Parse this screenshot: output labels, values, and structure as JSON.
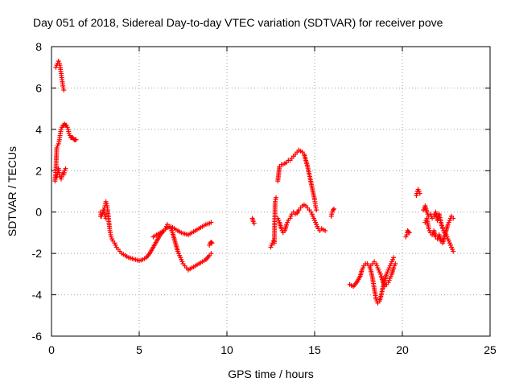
{
  "chart_data": {
    "type": "scatter",
    "title": "Day 051 of 2018, Sidereal Day-to-day VTEC variation (SDTVAR) for receiver pove",
    "xlabel": "GPS time / hours",
    "ylabel": "SDTVAR / TECUs",
    "xlim": [
      0,
      25
    ],
    "ylim": [
      -6,
      8
    ],
    "xticks": [
      0,
      5,
      10,
      15,
      20,
      25
    ],
    "yticks": [
      -6,
      -4,
      -2,
      0,
      2,
      4,
      6,
      8
    ],
    "grid": true,
    "marker": "+",
    "series_color": "#ff0000",
    "series": [
      {
        "name": "seg1",
        "x": [
          0.25,
          0.3,
          0.35,
          0.4,
          0.45,
          0.5,
          0.55,
          0.6,
          0.65,
          0.7
        ],
        "y": [
          7.0,
          7.1,
          7.2,
          7.3,
          7.2,
          7.0,
          6.7,
          6.4,
          6.1,
          5.9
        ]
      },
      {
        "name": "seg2",
        "x": [
          0.2,
          0.25,
          0.3,
          0.35,
          0.4,
          0.45,
          0.5,
          0.55,
          0.6,
          0.65,
          0.7,
          0.75,
          0.8,
          0.85,
          0.9,
          0.95,
          1.0,
          1.05,
          1.1,
          1.15,
          1.2,
          1.25,
          1.3,
          1.35,
          1.4
        ],
        "y": [
          1.5,
          2.0,
          3.1,
          3.2,
          3.3,
          3.5,
          3.8,
          4.0,
          4.1,
          4.2,
          4.2,
          4.25,
          4.2,
          4.2,
          4.1,
          4.0,
          3.8,
          3.7,
          3.6,
          3.6,
          3.6,
          3.55,
          3.5,
          3.5,
          3.5
        ]
      },
      {
        "name": "seg3",
        "x": [
          0.3,
          0.35,
          0.4,
          0.45,
          0.5,
          0.55,
          0.6,
          0.65,
          0.7,
          0.75,
          0.8
        ],
        "y": [
          1.7,
          1.9,
          2.1,
          1.8,
          1.7,
          1.6,
          1.8,
          1.9,
          1.8,
          2.0,
          2.1
        ]
      },
      {
        "name": "seg4",
        "x": [
          2.8,
          2.9,
          3.0,
          3.05,
          3.1,
          3.15,
          3.2,
          3.25,
          3.3,
          3.35,
          3.4,
          3.5,
          3.6,
          3.7,
          3.8,
          3.9,
          4.0,
          4.2,
          4.4,
          4.6,
          4.8,
          5.0,
          5.2,
          5.4,
          5.6,
          5.8,
          6.0,
          6.2,
          6.4,
          6.6,
          6.8,
          7.0,
          7.2,
          7.4,
          7.6,
          7.8,
          8.0,
          8.2,
          8.4,
          8.6,
          8.8,
          9.0,
          9.1
        ],
        "y": [
          -0.2,
          -0.1,
          0.1,
          0.3,
          0.5,
          0.4,
          0.1,
          -0.3,
          -0.7,
          -1.0,
          -1.2,
          -1.4,
          -1.5,
          -1.7,
          -1.8,
          -1.9,
          -2.0,
          -2.1,
          -2.2,
          -2.25,
          -2.3,
          -2.35,
          -2.3,
          -2.2,
          -2.0,
          -1.7,
          -1.4,
          -1.1,
          -0.9,
          -0.75,
          -0.7,
          -0.8,
          -0.9,
          -1.0,
          -1.05,
          -1.1,
          -1.0,
          -0.9,
          -0.8,
          -0.7,
          -0.6,
          -0.55,
          -0.5
        ]
      },
      {
        "name": "seg5",
        "x": [
          2.8,
          2.85,
          2.9,
          2.95,
          3.0,
          3.05,
          3.1
        ],
        "y": [
          0.0,
          -0.2,
          -0.1,
          0.1,
          0.0,
          -0.2,
          -0.3
        ]
      },
      {
        "name": "seg6",
        "x": [
          5.8,
          6.0,
          6.2,
          6.4,
          6.5,
          6.6,
          6.7,
          6.8,
          6.9,
          7.0,
          7.1,
          7.2,
          7.3,
          7.4,
          7.5,
          7.6,
          7.7,
          7.8,
          7.9,
          8.0,
          8.2,
          8.4,
          8.6,
          8.8,
          9.0,
          9.1
        ],
        "y": [
          -1.2,
          -1.1,
          -1.0,
          -0.9,
          -0.8,
          -0.6,
          -0.7,
          -0.8,
          -1.0,
          -1.3,
          -1.6,
          -1.9,
          -2.1,
          -2.3,
          -2.5,
          -2.6,
          -2.7,
          -2.8,
          -2.75,
          -2.7,
          -2.6,
          -2.5,
          -2.4,
          -2.3,
          -2.1,
          -2.0
        ]
      },
      {
        "name": "seg7",
        "x": [
          9.0,
          9.05,
          9.1,
          9.15
        ],
        "y": [
          -1.6,
          -1.5,
          -1.45,
          -1.5
        ]
      },
      {
        "name": "seg8",
        "x": [
          11.45,
          11.5,
          11.55
        ],
        "y": [
          -0.3,
          -0.45,
          -0.55
        ]
      },
      {
        "name": "seg9",
        "x": [
          12.5,
          12.55,
          12.6,
          12.65,
          12.7,
          12.75,
          12.8
        ],
        "y": [
          -1.7,
          -1.6,
          -1.5,
          -1.4,
          -1.5,
          0.5,
          0.7
        ]
      },
      {
        "name": "seg10",
        "x": [
          12.9,
          13.0,
          13.1,
          13.2,
          13.3,
          13.4,
          13.5,
          13.6,
          13.7,
          13.8,
          13.9,
          14.0,
          14.1,
          14.2,
          14.3,
          14.4,
          14.5,
          14.6,
          14.7,
          14.8,
          14.9,
          15.0,
          15.05,
          15.1
        ],
        "y": [
          1.5,
          2.2,
          2.3,
          2.3,
          2.35,
          2.4,
          2.5,
          2.5,
          2.6,
          2.7,
          2.8,
          2.9,
          3.0,
          2.95,
          2.9,
          2.8,
          2.5,
          2.2,
          1.8,
          1.4,
          1.0,
          0.6,
          0.3,
          0.1
        ]
      },
      {
        "name": "seg11",
        "x": [
          12.9,
          13.0,
          13.1,
          13.2,
          13.3,
          13.4,
          13.5,
          13.6,
          13.7,
          13.8,
          13.9,
          14.0,
          14.1,
          14.2,
          14.3,
          14.4,
          14.5,
          14.6,
          14.7,
          14.8,
          14.9,
          15.0,
          15.1,
          15.2,
          15.3,
          15.4,
          15.5,
          15.6
        ],
        "y": [
          -0.3,
          -0.5,
          -0.8,
          -1.0,
          -0.9,
          -0.6,
          -0.4,
          -0.3,
          -0.1,
          0.0,
          -0.1,
          -0.05,
          0.1,
          0.2,
          0.3,
          0.35,
          0.3,
          0.2,
          0.1,
          0.0,
          -0.2,
          -0.4,
          -0.6,
          -0.8,
          -0.9,
          -0.8,
          -0.85,
          -0.9
        ]
      },
      {
        "name": "seg12",
        "x": [
          15.95,
          16.0,
          16.05,
          16.1
        ],
        "y": [
          -0.2,
          0.0,
          0.1,
          0.15
        ]
      },
      {
        "name": "seg13",
        "x": [
          17.0,
          17.2,
          17.4,
          17.6,
          17.7,
          17.8,
          17.9,
          18.0,
          18.1,
          18.2,
          18.3,
          18.4,
          18.5,
          18.6,
          18.7,
          18.8,
          18.9,
          19.0,
          19.1,
          19.2,
          19.3,
          19.4,
          19.5
        ],
        "y": [
          -3.5,
          -3.6,
          -3.4,
          -3.1,
          -2.8,
          -2.6,
          -2.5,
          -2.5,
          -2.6,
          -2.8,
          -3.2,
          -3.7,
          -4.2,
          -4.4,
          -4.3,
          -4.0,
          -3.6,
          -3.3,
          -3.0,
          -2.8,
          -2.6,
          -2.4,
          -2.2
        ]
      },
      {
        "name": "seg14",
        "x": [
          18.2,
          18.3,
          18.4,
          18.5,
          18.6,
          18.7,
          18.8,
          18.9,
          19.0,
          19.1,
          19.2,
          19.3,
          19.4,
          19.5,
          19.6
        ],
        "y": [
          -2.6,
          -2.5,
          -2.4,
          -2.5,
          -2.7,
          -2.9,
          -3.1,
          -3.4,
          -3.6,
          -3.5,
          -3.4,
          -3.2,
          -3.0,
          -2.7,
          -2.5
        ]
      },
      {
        "name": "seg15",
        "x": [
          20.2,
          20.25,
          20.3,
          20.35,
          20.4
        ],
        "y": [
          -1.2,
          -1.1,
          -0.9,
          -0.95,
          -1.0
        ]
      },
      {
        "name": "seg16",
        "x": [
          20.8,
          20.85,
          20.9,
          20.95,
          21.0
        ],
        "y": [
          0.8,
          1.0,
          1.1,
          1.0,
          0.9
        ]
      },
      {
        "name": "seg17",
        "x": [
          21.2,
          21.3,
          21.4,
          21.5,
          21.6,
          21.7,
          21.8,
          21.9,
          22.0,
          22.1,
          22.2,
          22.3,
          22.4,
          22.5,
          22.6,
          22.7,
          22.8,
          22.9
        ],
        "y": [
          0.1,
          0.3,
          0.0,
          -0.2,
          -0.1,
          -0.3,
          -0.2,
          0.0,
          -0.4,
          -0.1,
          -0.5,
          -0.8,
          -1.0,
          -1.1,
          -1.3,
          -1.5,
          -1.7,
          -1.9
        ]
      },
      {
        "name": "seg18",
        "x": [
          21.3,
          21.4,
          21.5,
          21.6,
          21.7,
          21.8,
          21.9,
          22.0,
          22.1,
          22.2,
          22.3,
          22.4,
          22.5,
          22.6,
          22.7,
          22.8,
          22.9
        ],
        "y": [
          -0.5,
          -0.3,
          -0.8,
          -1.0,
          -1.1,
          -0.9,
          -1.2,
          -1.3,
          -1.1,
          -1.4,
          -1.5,
          -1.2,
          -0.9,
          -0.6,
          -0.4,
          -0.2,
          -0.3
        ]
      }
    ]
  }
}
